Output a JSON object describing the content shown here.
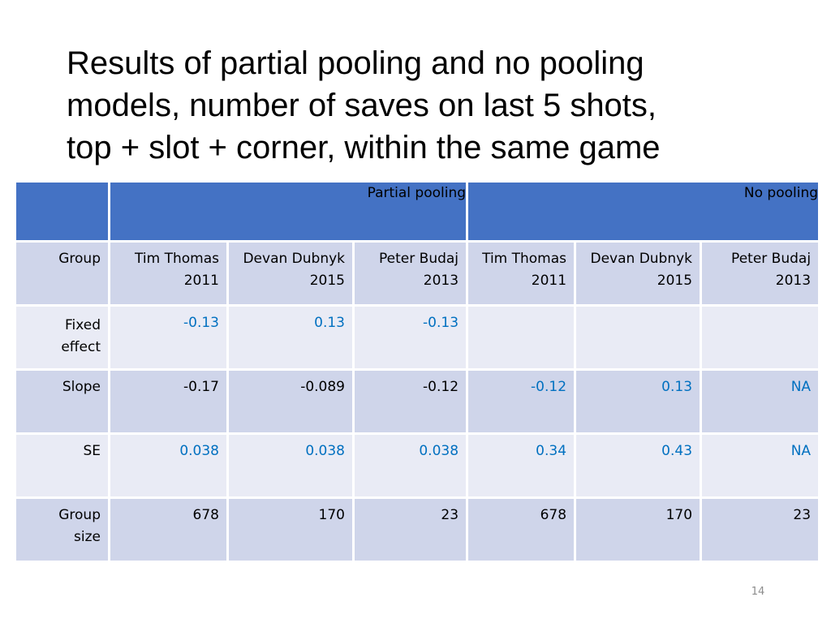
{
  "title": {
    "line1": "Results of partial pooling and no pooling",
    "line2": "models, number of saves on last 5 shots,",
    "line3": "top + slot + corner, within the same game"
  },
  "table": {
    "groups": [
      "Partial pooling",
      "No pooling"
    ],
    "header_row": {
      "label": "Group",
      "cells": [
        [
          "Tim Thomas",
          "2011"
        ],
        [
          "Devan Dubnyk",
          "2015"
        ],
        [
          "Peter Budaj",
          "2013"
        ],
        [
          "Tim Thomas",
          "2011"
        ],
        [
          "Devan Dubnyk",
          "2015"
        ],
        [
          "Peter Budaj",
          "2013"
        ]
      ]
    },
    "rows": [
      {
        "label": [
          "Fixed",
          "effect"
        ],
        "values": [
          "-0.13",
          "0.13",
          "-0.13",
          "",
          "",
          ""
        ]
      },
      {
        "label": [
          "Slope"
        ],
        "values": [
          "-0.17",
          "-0.089",
          "-0.12",
          "-0.12",
          "0.13",
          "NA"
        ]
      },
      {
        "label": [
          "SE"
        ],
        "values": [
          "0.038",
          "0.038",
          "0.038",
          "0.34",
          "0.43",
          "NA"
        ]
      },
      {
        "label": [
          "Group",
          "size"
        ],
        "values": [
          "678",
          "170",
          "23",
          "678",
          "170",
          "23"
        ]
      }
    ],
    "highlight_color": "#0070c0",
    "header_color": "#4472c4"
  },
  "page_number": "14"
}
